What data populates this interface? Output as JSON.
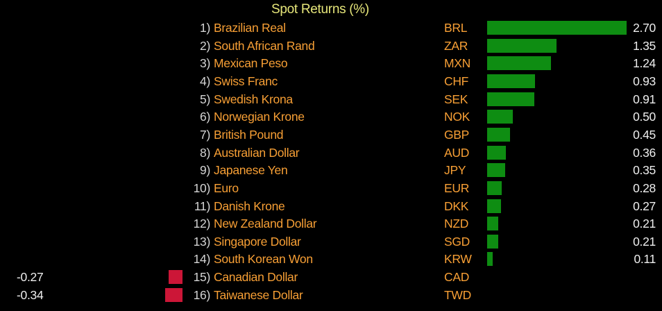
{
  "title": "Spot Returns (%)",
  "colors": {
    "background": "#000000",
    "title_yellow": "#e6e67a",
    "label_orange": "#f79f35",
    "rank_gray": "#d4d4d4",
    "value_white": "#eeeeee",
    "positive_bar": "#0e8d12",
    "negative_bar": "#cc1637"
  },
  "chart_data": {
    "type": "bar",
    "orientation": "horizontal",
    "title": "Spot Returns (%)",
    "xlabel": "",
    "ylabel": "",
    "xlim": [
      -0.34,
      2.7
    ],
    "grid": false,
    "legend": false,
    "value_axis_hidden": true,
    "rank_labels": [
      "1)",
      "2)",
      "3)",
      "4)",
      "5)",
      "6)",
      "7)",
      "8)",
      "9)",
      "10)",
      "11)",
      "12)",
      "13)",
      "14)",
      "15)",
      "16)"
    ],
    "categories": [
      "Brazilian Real",
      "South African Rand",
      "Mexican Peso",
      "Swiss Franc",
      "Swedish Krona",
      "Norwegian Krone",
      "British Pound",
      "Australian Dollar",
      "Japanese Yen",
      "Euro",
      "Danish Krone",
      "New Zealand Dollar",
      "Singapore Dollar",
      "South Korean Won",
      "Canadian Dollar",
      "Taiwanese Dollar"
    ],
    "codes": [
      "BRL",
      "ZAR",
      "MXN",
      "CHF",
      "SEK",
      "NOK",
      "GBP",
      "AUD",
      "JPY",
      "EUR",
      "DKK",
      "NZD",
      "SGD",
      "KRW",
      "CAD",
      "TWD"
    ],
    "values": [
      2.7,
      1.35,
      1.24,
      0.93,
      0.91,
      0.5,
      0.45,
      0.36,
      0.35,
      0.28,
      0.27,
      0.21,
      0.21,
      0.11,
      -0.27,
      -0.34
    ],
    "value_labels": [
      "2.70",
      "1.35",
      "1.24",
      "0.93",
      "0.91",
      "0.50",
      "0.45",
      "0.36",
      "0.35",
      "0.28",
      "0.27",
      "0.21",
      "0.21",
      "0.11",
      "-0.27",
      "-0.34"
    ],
    "positive_color": "#0e8d12",
    "negative_color": "#cc1637"
  }
}
